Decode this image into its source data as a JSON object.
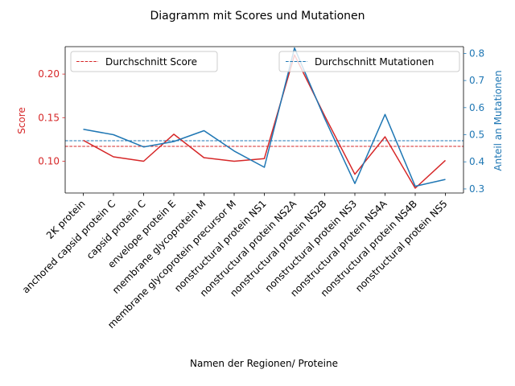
{
  "chart_data": {
    "type": "line",
    "title": "Diagramm mit Scores und Mutationen",
    "xlabel": "Namen der Regionen/ Proteine",
    "categories": [
      "2K protein",
      "anchored capsid protein C",
      "capsid protein C",
      "envelope protein E",
      "membrane glycoprotein M",
      "membrane glycoprotein precursor M",
      "nonstructural protein NS1",
      "nonstructural protein NS2A",
      "nonstructural protein NS2B",
      "nonstructural protein NS3",
      "nonstructural protein NS4A",
      "nonstructural protein NS4B",
      "nonstructural protein NS5"
    ],
    "left_axis": {
      "label": "Score",
      "color": "#d62728",
      "ylim": [
        0.0635,
        0.2315
      ],
      "ticks": [
        0.1,
        0.15,
        0.2
      ],
      "tick_labels": [
        "0.10",
        "0.15",
        "0.20"
      ]
    },
    "right_axis": {
      "label": "Anteil an Mutationen",
      "color": "#1f77b4",
      "ylim": [
        0.285,
        0.825
      ],
      "ticks": [
        0.3,
        0.4,
        0.5,
        0.6,
        0.7,
        0.8
      ],
      "tick_labels": [
        "0.3",
        "0.4",
        "0.5",
        "0.6",
        "0.7",
        "0.8"
      ]
    },
    "series": [
      {
        "axis": "left",
        "color": "#d62728",
        "values": [
          0.124,
          0.105,
          0.1,
          0.131,
          0.104,
          0.1,
          0.103,
          0.222,
          0.152,
          0.085,
          0.128,
          0.069,
          0.101
        ]
      },
      {
        "axis": "right",
        "color": "#1f77b4",
        "values": [
          0.52,
          0.5,
          0.455,
          0.475,
          0.515,
          0.44,
          0.38,
          0.82,
          0.56,
          0.32,
          0.575,
          0.31,
          0.335
        ]
      }
    ],
    "reference_lines": [
      {
        "name": "Durchschnitt Score",
        "axis": "left",
        "value": 0.117,
        "color": "#d62728",
        "style": "dashed"
      },
      {
        "name": "Durchschnitt Mutationen",
        "axis": "right",
        "value": 0.478,
        "color": "#1f77b4",
        "style": "dashed"
      }
    ],
    "legends": [
      {
        "placement": "top-left",
        "entries": [
          "Durchschnitt Score"
        ]
      },
      {
        "placement": "top-right",
        "entries": [
          "Durchschnitt Mutationen"
        ]
      }
    ],
    "grid": false
  }
}
